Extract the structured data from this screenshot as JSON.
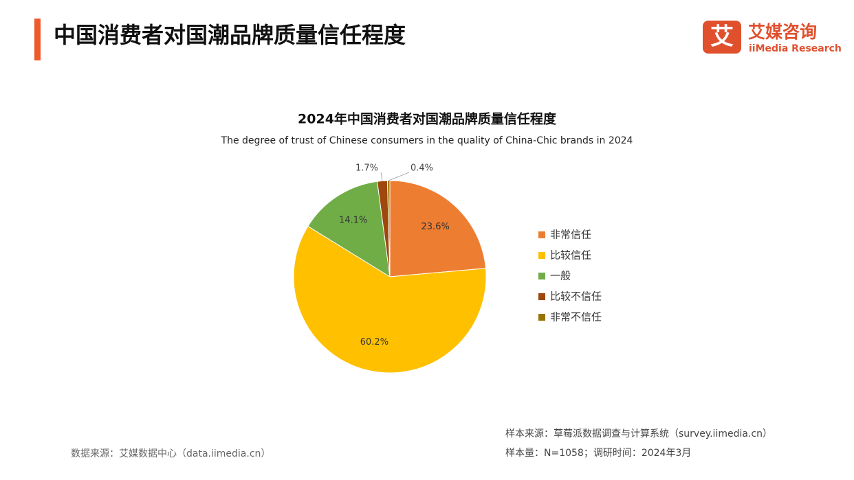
{
  "header": {
    "title": "中国消费者对国潮品牌质量信任程度"
  },
  "logo": {
    "icon": "艾",
    "name": "艾媒咨询",
    "english": "iiMedia Research"
  },
  "chart_data": {
    "type": "pie",
    "title": "2024年中国消费者对国潮品牌质量信任程度",
    "subtitle": "The degree of trust of Chinese consumers in the quality of China-Chic brands in 2024",
    "categories": [
      "非常信任",
      "比较信任",
      "一般",
      "比较不信任",
      "非常不信任"
    ],
    "values": [
      23.6,
      60.2,
      14.1,
      1.7,
      0.4
    ],
    "value_labels": [
      "23.6%",
      "60.2%",
      "14.1%",
      "1.7%",
      "0.4%"
    ],
    "colors": [
      "#ed7d31",
      "#ffc000",
      "#70ad47",
      "#9e480e",
      "#997300"
    ],
    "legend": "right"
  },
  "footer": {
    "data_source": "数据来源：艾媒数据中心（data.iimedia.cn）",
    "sample_source": "样本来源：草莓派数据调查与计算系统（survey.iimedia.cn）",
    "sample_size": "样本量：N=1058；调研时间：2024年3月"
  }
}
